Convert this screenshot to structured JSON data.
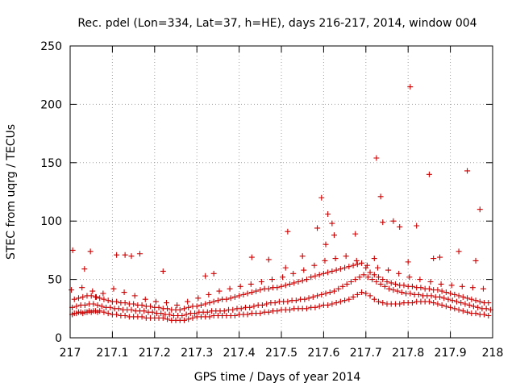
{
  "chart_data": {
    "type": "scatter",
    "title": "Rec. pdel (Lon=334, Lat=37, h=HE), days 216-217, 2014, window 004",
    "xlabel": "GPS time / Days of year 2014",
    "ylabel": "STEC from uqrg / TECUs",
    "xlim": [
      217,
      218
    ],
    "ylim": [
      0,
      250
    ],
    "xticks": [
      217,
      217.1,
      217.2,
      217.3,
      217.4,
      217.5,
      217.6,
      217.7,
      217.8,
      217.9,
      218
    ],
    "xtick_labels": [
      "217",
      "217.1",
      "217.2",
      "217.3",
      "217.4",
      "217.5",
      "217.6",
      "217.7",
      "217.8",
      "217.9",
      "218"
    ],
    "yticks": [
      0,
      50,
      100,
      150,
      200,
      250
    ],
    "ytick_labels": [
      "0",
      "50",
      "100",
      "150",
      "200",
      "250"
    ],
    "grid": true,
    "marker": "+",
    "color": "#cc0000",
    "series": [
      {
        "x": [
          217.005,
          217.01,
          217.015,
          217.02,
          217.025,
          217.03,
          217.035,
          217.04,
          217.045,
          217.05,
          217.055,
          217.06,
          217.065,
          217.07,
          217.08,
          217.09,
          217.1,
          217.11,
          217.12,
          217.13,
          217.14,
          217.15,
          217.16,
          217.17,
          217.18,
          217.19,
          217.2,
          217.21,
          217.22,
          217.23,
          217.24,
          217.25,
          217.26,
          217.27,
          217.28,
          217.29,
          217.3,
          217.31,
          217.32,
          217.33,
          217.34,
          217.35,
          217.36,
          217.37,
          217.38,
          217.39,
          217.4,
          217.41,
          217.42,
          217.43,
          217.44,
          217.45,
          217.46,
          217.47,
          217.48,
          217.49,
          217.5,
          217.51,
          217.52,
          217.53,
          217.54,
          217.55,
          217.56,
          217.57,
          217.58,
          217.59,
          217.6,
          217.61,
          217.62,
          217.63,
          217.64,
          217.65,
          217.66,
          217.67,
          217.68,
          217.69,
          217.7,
          217.71,
          217.72,
          217.73,
          217.74,
          217.75,
          217.76,
          217.77,
          217.78,
          217.79,
          217.8,
          217.81,
          217.82,
          217.83,
          217.84,
          217.85,
          217.86,
          217.87,
          217.88,
          217.89,
          217.9,
          217.91,
          217.92,
          217.93,
          217.94,
          217.95,
          217.96,
          217.97,
          217.98,
          217.99
        ],
        "y": [
          20,
          21,
          21,
          22,
          22,
          21,
          22,
          22,
          23,
          22,
          23,
          23,
          22,
          23,
          22,
          21,
          20,
          20,
          19,
          19,
          18,
          18,
          18,
          18,
          17,
          17,
          17,
          17,
          17,
          16,
          15,
          15,
          15,
          15,
          16,
          17,
          18,
          18,
          18,
          18,
          19,
          19,
          19,
          19,
          19,
          19,
          20,
          20,
          20,
          21,
          21,
          21,
          22,
          22,
          23,
          23,
          24,
          24,
          24,
          25,
          25,
          25,
          25,
          26,
          26,
          27,
          28,
          28,
          29,
          30,
          31,
          32,
          33,
          35,
          37,
          39,
          38,
          36,
          33,
          31,
          30,
          29,
          29,
          29,
          29,
          30,
          30,
          30,
          31,
          31,
          31,
          31,
          30,
          29,
          28,
          27,
          26,
          25,
          24,
          23,
          22,
          21,
          21,
          20,
          20,
          19
        ]
      },
      {
        "x": [
          217.005,
          217.015,
          217.025,
          217.035,
          217.045,
          217.055,
          217.065,
          217.075,
          217.085,
          217.095,
          217.105,
          217.115,
          217.125,
          217.135,
          217.145,
          217.155,
          217.165,
          217.175,
          217.185,
          217.195,
          217.205,
          217.215,
          217.225,
          217.235,
          217.245,
          217.255,
          217.265,
          217.275,
          217.285,
          217.295,
          217.305,
          217.315,
          217.325,
          217.335,
          217.345,
          217.355,
          217.365,
          217.375,
          217.385,
          217.395,
          217.405,
          217.415,
          217.425,
          217.435,
          217.445,
          217.455,
          217.465,
          217.475,
          217.485,
          217.495,
          217.505,
          217.515,
          217.525,
          217.535,
          217.545,
          217.555,
          217.565,
          217.575,
          217.585,
          217.595,
          217.605,
          217.615,
          217.625,
          217.635,
          217.645,
          217.655,
          217.665,
          217.675,
          217.685,
          217.695,
          217.705,
          217.715,
          217.725,
          217.735,
          217.745,
          217.755,
          217.765,
          217.775,
          217.785,
          217.795,
          217.805,
          217.815,
          217.825,
          217.835,
          217.845,
          217.855,
          217.865,
          217.875,
          217.885,
          217.895,
          217.905,
          217.915,
          217.925,
          217.935,
          217.945,
          217.955,
          217.965,
          217.975,
          217.985,
          217.995
        ],
        "y": [
          26,
          27,
          28,
          28,
          29,
          29,
          28,
          27,
          26,
          26,
          25,
          25,
          24,
          24,
          24,
          23,
          23,
          23,
          22,
          22,
          21,
          21,
          20,
          20,
          19,
          19,
          19,
          20,
          21,
          21,
          22,
          22,
          22,
          23,
          23,
          23,
          23,
          24,
          24,
          25,
          25,
          26,
          26,
          27,
          28,
          28,
          29,
          30,
          30,
          31,
          31,
          31,
          32,
          32,
          33,
          33,
          34,
          35,
          36,
          37,
          38,
          39,
          40,
          42,
          44,
          46,
          48,
          50,
          52,
          54,
          52,
          50,
          48,
          46,
          44,
          42,
          41,
          40,
          39,
          38,
          38,
          37,
          37,
          36,
          36,
          36,
          35,
          35,
          34,
          33,
          32,
          31,
          30,
          29,
          28,
          27,
          26,
          25,
          25,
          24
        ]
      },
      {
        "x": [
          217.01,
          217.02,
          217.03,
          217.04,
          217.05,
          217.06,
          217.07,
          217.08,
          217.09,
          217.1,
          217.11,
          217.12,
          217.13,
          217.14,
          217.15,
          217.16,
          217.17,
          217.18,
          217.19,
          217.2,
          217.21,
          217.22,
          217.23,
          217.24,
          217.25,
          217.26,
          217.27,
          217.28,
          217.29,
          217.3,
          217.31,
          217.32,
          217.33,
          217.34,
          217.35,
          217.36,
          217.37,
          217.38,
          217.39,
          217.4,
          217.41,
          217.42,
          217.43,
          217.44,
          217.45,
          217.46,
          217.47,
          217.48,
          217.49,
          217.5,
          217.51,
          217.52,
          217.53,
          217.54,
          217.55,
          217.56,
          217.57,
          217.58,
          217.59,
          217.6,
          217.61,
          217.62,
          217.63,
          217.64,
          217.65,
          217.66,
          217.67,
          217.68,
          217.69,
          217.7,
          217.71,
          217.72,
          217.73,
          217.74,
          217.75,
          217.76,
          217.77,
          217.78,
          217.79,
          217.8,
          217.81,
          217.82,
          217.83,
          217.84,
          217.85,
          217.86,
          217.87,
          217.88,
          217.89,
          217.9,
          217.91,
          217.92,
          217.93,
          217.94,
          217.95,
          217.96,
          217.97,
          217.98,
          217.99
        ],
        "y": [
          33,
          34,
          35,
          36,
          36,
          35,
          34,
          33,
          32,
          31,
          31,
          30,
          30,
          29,
          29,
          28,
          28,
          27,
          27,
          26,
          26,
          25,
          25,
          24,
          24,
          24,
          25,
          26,
          27,
          27,
          28,
          29,
          30,
          31,
          32,
          33,
          33,
          34,
          35,
          36,
          37,
          38,
          39,
          40,
          41,
          42,
          42,
          43,
          43,
          44,
          45,
          46,
          47,
          48,
          49,
          50,
          52,
          53,
          54,
          55,
          56,
          57,
          58,
          59,
          60,
          61,
          62,
          63,
          64,
          60,
          56,
          54,
          52,
          50,
          48,
          47,
          46,
          45,
          45,
          44,
          44,
          43,
          43,
          42,
          42,
          41,
          41,
          40,
          39,
          38,
          37,
          36,
          35,
          34,
          33,
          32,
          31,
          30,
          30
        ]
      },
      {
        "x": [
          217.003,
          217.028,
          217.053,
          217.078,
          217.103,
          217.128,
          217.153,
          217.178,
          217.203,
          217.228,
          217.253,
          217.278,
          217.303,
          217.328,
          217.353,
          217.378,
          217.403,
          217.428,
          217.453,
          217.478,
          217.503,
          217.528,
          217.553,
          217.578,
          217.603,
          217.628,
          217.653,
          217.678,
          217.703,
          217.728,
          217.753,
          217.778,
          217.803,
          217.828,
          217.853,
          217.878,
          217.903,
          217.928,
          217.953,
          217.978
        ],
        "y": [
          41,
          43,
          40,
          38,
          42,
          39,
          36,
          33,
          31,
          30,
          28,
          31,
          34,
          37,
          40,
          42,
          44,
          46,
          48,
          50,
          52,
          55,
          58,
          62,
          66,
          68,
          70,
          66,
          62,
          60,
          58,
          55,
          52,
          50,
          48,
          46,
          45,
          44,
          43,
          42
        ]
      },
      {
        "x": [
          217.006,
          217.034,
          217.048,
          217.062,
          217.11,
          217.13,
          217.145,
          217.165,
          217.22,
          217.32,
          217.34,
          217.43,
          217.47,
          217.51,
          217.515,
          217.55,
          217.585,
          217.595,
          217.605,
          217.61,
          217.62,
          217.625,
          217.675,
          217.72,
          217.725,
          217.735,
          217.74,
          217.765,
          217.78,
          217.8,
          217.805,
          217.82,
          217.85,
          217.86,
          217.875,
          217.92,
          217.94,
          217.96,
          217.97
        ],
        "y": [
          75,
          59,
          74,
          35,
          71,
          71,
          70,
          72,
          57,
          53,
          55,
          69,
          67,
          60,
          91,
          70,
          94,
          120,
          80,
          106,
          98,
          88,
          89,
          68,
          154,
          121,
          99,
          100,
          95,
          65,
          215,
          96,
          140,
          68,
          69,
          74,
          143,
          66,
          110
        ]
      }
    ]
  }
}
